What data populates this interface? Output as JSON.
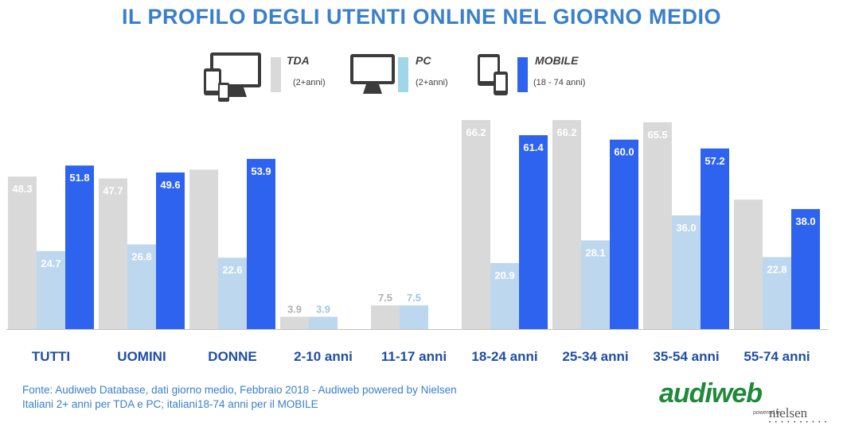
{
  "colors": {
    "title": "#3a7fcc",
    "tda": "#d9d9d9",
    "pc": "#bdd7ee",
    "mobile": "#2e63f0"
  },
  "title": "IL PROFILO DEGLI UTENTI ONLINE NEL GIORNO MEDIO",
  "legend": [
    {
      "name": "TDA",
      "sub": "(2+anni)",
      "icon": "multi-device-icon"
    },
    {
      "name": "PC",
      "sub": "(2+anni)",
      "icon": "monitor-icon"
    },
    {
      "name": "MOBILE",
      "sub": "(18 - 74 anni)",
      "icon": "tablet-phone-icon"
    }
  ],
  "chart_data": {
    "type": "bar",
    "categories": [
      "TUTTI",
      "UOMINI",
      "DONNE",
      "2-10 anni",
      "11-17 anni",
      "18-24 anni",
      "25-34 anni",
      "35-54 anni",
      "55-74 anni"
    ],
    "series": [
      {
        "name": "TDA",
        "values": [
          48.3,
          47.7,
          50.5,
          3.9,
          7.5,
          66.2,
          66.2,
          65.5,
          41.0
        ],
        "labels": [
          "48.3",
          "47.7",
          "",
          "3.9",
          "7.5",
          "66.2",
          "66.2",
          "65.5",
          ""
        ]
      },
      {
        "name": "PC",
        "values": [
          24.7,
          26.8,
          22.6,
          3.9,
          7.5,
          20.9,
          28.1,
          36.0,
          22.8
        ],
        "labels": [
          "24.7",
          "26.8",
          "22.6",
          "3.9",
          "7.5",
          "20.9",
          "28.1",
          "36.0",
          "22.8"
        ]
      },
      {
        "name": "MOBILE",
        "values": [
          51.8,
          49.6,
          53.9,
          null,
          null,
          61.4,
          60.0,
          57.2,
          38.0
        ],
        "labels": [
          "51.8",
          "49.6",
          "53.9",
          "",
          "",
          "61.4",
          "60.0",
          "57.2",
          "38.0"
        ]
      }
    ],
    "ylim": [
      0,
      72
    ],
    "grid": false
  },
  "source": {
    "line1": "Fonte: Audiweb Database, dati giorno medio, Febbraio 2018 - Audiweb powered by Nielsen",
    "line2": "Italiani 2+ anni per TDA e PC; italiani18-74 anni per il MOBILE"
  },
  "logo": {
    "main": "audiweb",
    "powered": "powered by",
    "partner": "nielsen",
    "dots": "• • • • • • • • • •"
  }
}
